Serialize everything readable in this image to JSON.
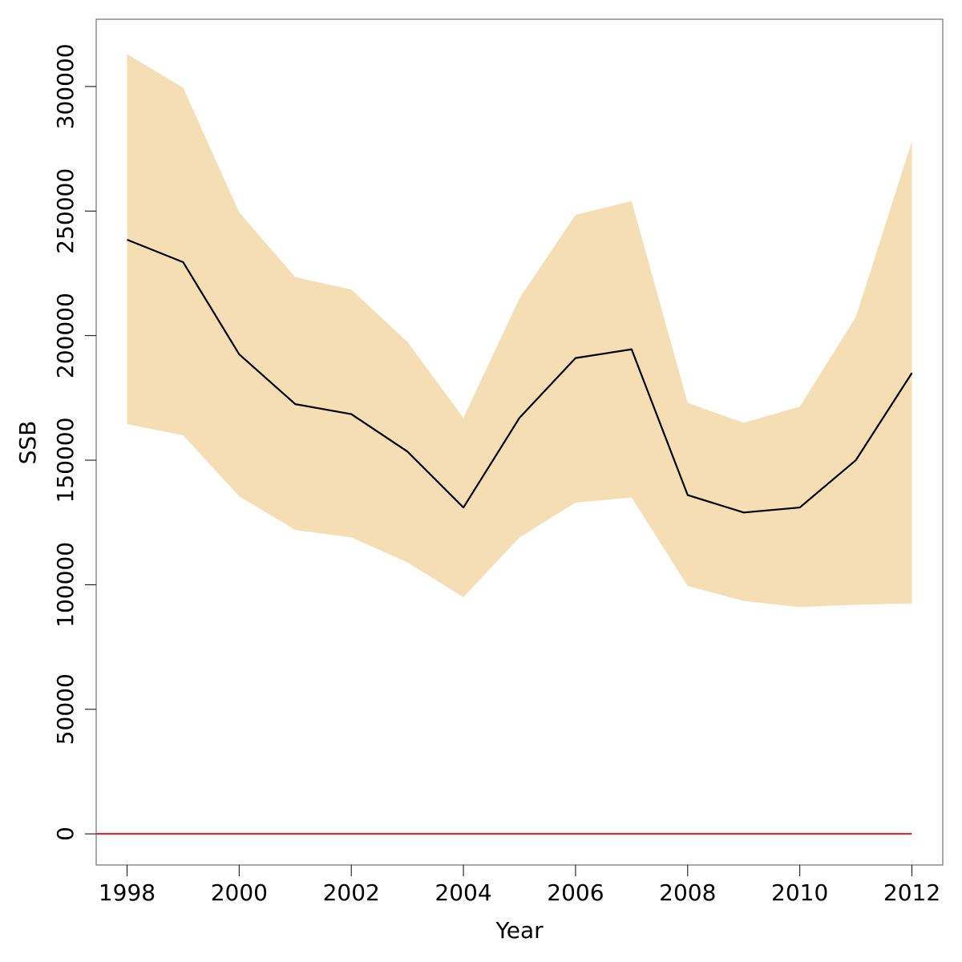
{
  "chart_data": {
    "type": "area",
    "xlabel": "Year",
    "ylabel": "SSB",
    "xlim": [
      1997.45,
      2012.55
    ],
    "ylim": [
      -12500,
      327000
    ],
    "x_ticks": [
      1998,
      2000,
      2002,
      2004,
      2006,
      2008,
      2010,
      2012
    ],
    "y_ticks": [
      0,
      50000,
      100000,
      150000,
      200000,
      250000,
      300000
    ],
    "grid": false,
    "x": [
      1998,
      1999,
      2000,
      2001,
      2002,
      2003,
      2004,
      2005,
      2006,
      2007,
      2008,
      2009,
      2010,
      2011,
      2012
    ],
    "series": [
      {
        "type": "line",
        "values": [
          238500,
          229500,
          192500,
          172500,
          168500,
          153500,
          131000,
          167000,
          191000,
          194500,
          136000,
          129000,
          131000,
          150000,
          185000
        ]
      },
      {
        "type": "band",
        "upper": [
          313000,
          299500,
          249500,
          223500,
          218500,
          197500,
          167000,
          215000,
          248500,
          254000,
          173000,
          165000,
          171500,
          207500,
          278000
        ],
        "lower": [
          164500,
          160000,
          135500,
          122000,
          119000,
          109000,
          95000,
          119000,
          133000,
          135000,
          99500,
          93500,
          91000,
          92000,
          92500
        ]
      },
      {
        "type": "reference",
        "value": 0,
        "x_range": [
          1997.45,
          2012
        ]
      }
    ],
    "colors": {
      "band": "#f5deb3",
      "line": "#000000",
      "reference": "#e41a1c",
      "frame": "#555555"
    }
  }
}
